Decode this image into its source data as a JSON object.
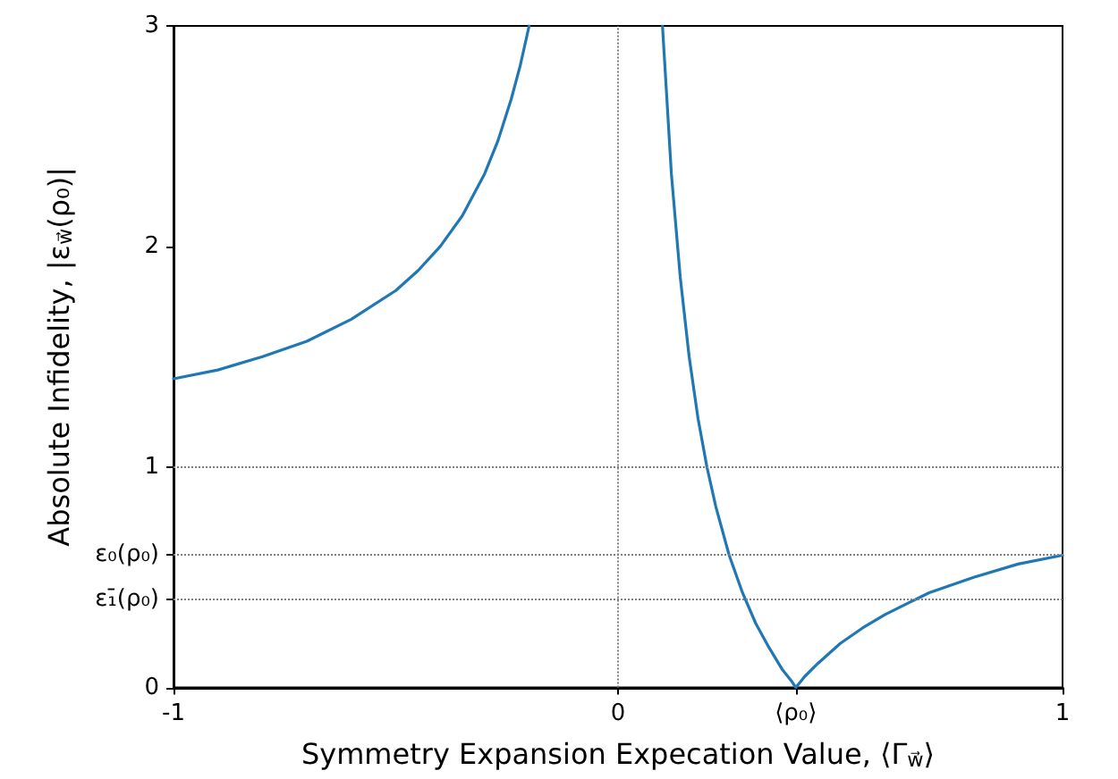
{
  "chart_data": {
    "type": "line",
    "xlabel": "Symmetry Expansion Expecation Value, ⟨Γ$_{w⃗}$⟩",
    "ylabel": "Absolute Infidelity, |ε$_{w⃗}$(ρ₀)|",
    "x": [
      -1,
      -0.9,
      -0.8,
      -0.7,
      -0.6,
      -0.5,
      -0.45,
      -0.4,
      -0.35,
      -0.3,
      -0.27,
      -0.24,
      -0.22,
      -0.2,
      0,
      0.1,
      0.12,
      0.14,
      0.16,
      0.18,
      0.2,
      0.22,
      0.25,
      0.28,
      0.31,
      0.34,
      0.37,
      0.39,
      0.4,
      0.42,
      0.45,
      0.5,
      0.55,
      0.6,
      0.7,
      0.8,
      0.9,
      1
    ],
    "series": [
      {
        "color": "#1f77b4",
        "values": [
          1.4,
          1.44,
          1.5,
          1.57,
          1.67,
          1.8,
          1.89,
          2.0,
          2.14,
          2.33,
          2.48,
          2.67,
          2.82,
          3.0,
          null,
          3.0,
          2.33,
          1.86,
          1.5,
          1.22,
          1.0,
          0.82,
          0.6,
          0.43,
          0.29,
          0.18,
          0.08,
          0.03,
          0.0,
          0.05,
          0.11,
          0.2,
          0.27,
          0.33,
          0.43,
          0.5,
          0.56,
          0.6
        ]
      }
    ],
    "xlim": [
      -1,
      1
    ],
    "xticks": [
      -1,
      0,
      {
        "value": 0.4,
        "label": "⟨ρ₀⟩"
      },
      1
    ],
    "ylim": [
      0,
      3
    ],
    "yticks": [
      0,
      {
        "value": 0.4,
        "label": "ε₁̄(ρ₀)"
      },
      {
        "value": 0.6,
        "label": "ε₀(ρ₀)"
      },
      1,
      2,
      3
    ],
    "ref_lines": [
      {
        "axis": "x",
        "value": 0,
        "color": "#808080",
        "line_style": "dotted"
      },
      {
        "axis": "y",
        "value": 1,
        "color": "#808080",
        "line_style": "dotted"
      },
      {
        "axis": "y",
        "value": 0.6,
        "color": "#808080",
        "line_style": "dotted"
      },
      {
        "axis": "y",
        "value": 0.4,
        "color": "#808080",
        "line_style": "dotted"
      }
    ],
    "grid": false,
    "marker": "none",
    "line_style": "solid"
  }
}
